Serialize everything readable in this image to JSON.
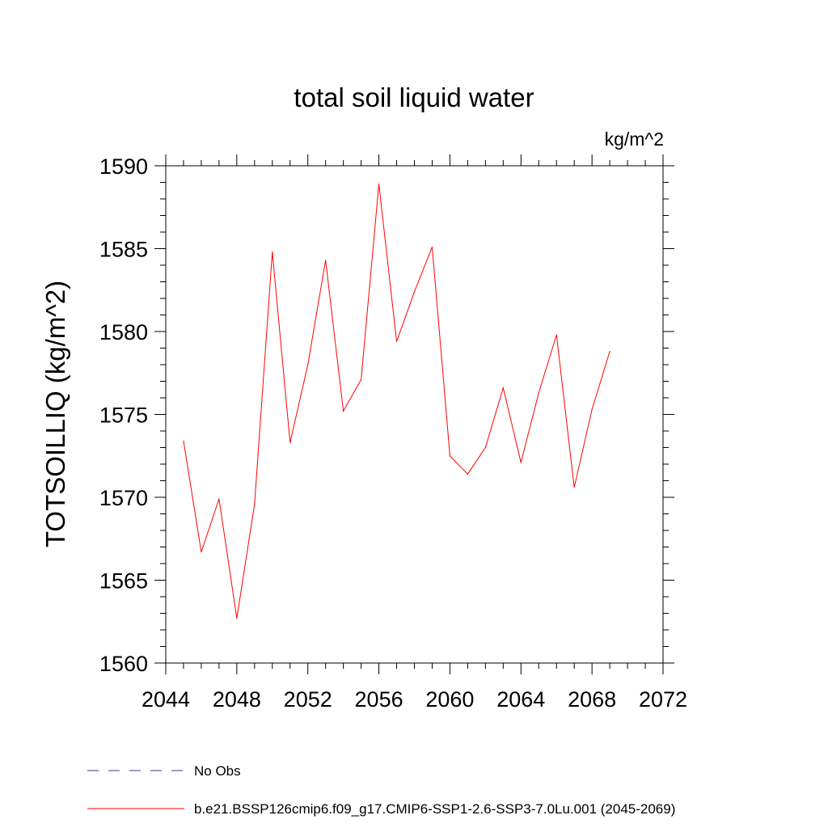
{
  "chart_data": {
    "type": "line",
    "title": "total soil liquid water",
    "units": "kg/m^2",
    "xlabel": "",
    "ylabel": "TOTSOILLIQ  (kg/m^2)",
    "xlim": [
      2044,
      2072
    ],
    "ylim": [
      1560,
      1590
    ],
    "x_ticks": [
      2044,
      2048,
      2052,
      2056,
      2060,
      2064,
      2068,
      2072
    ],
    "y_ticks": [
      1560,
      1565,
      1570,
      1575,
      1580,
      1585,
      1590
    ],
    "x_tick_labels": [
      "2044",
      "2048",
      "2052",
      "2056",
      "2060",
      "2064",
      "2068",
      "2072"
    ],
    "y_tick_labels": [
      "1560",
      "1565",
      "1570",
      "1575",
      "1580",
      "1585",
      "1590"
    ],
    "grid": false,
    "legend_position": "bottom",
    "series": [
      {
        "name": "No Obs",
        "color": "#3a3aa0",
        "line_style": "dashed",
        "x": [],
        "values": []
      },
      {
        "name": "b.e21.BSSP126cmip6.f09_g17.CMIP6-SSP1-2.6-SSP3-7.0Lu.001 (2045-2069)",
        "color": "#ff0000",
        "line_style": "solid",
        "x": [
          2045,
          2046,
          2047,
          2048,
          2049,
          2050,
          2051,
          2052,
          2053,
          2054,
          2055,
          2056,
          2057,
          2058,
          2059,
          2060,
          2061,
          2062,
          2063,
          2064,
          2065,
          2066,
          2067,
          2068,
          2069
        ],
        "values": [
          1573.4,
          1566.7,
          1569.9,
          1562.7,
          1569.6,
          1584.8,
          1573.3,
          1578.0,
          1584.3,
          1575.2,
          1577.1,
          1588.9,
          1579.4,
          1582.4,
          1585.1,
          1572.5,
          1571.4,
          1573.0,
          1576.6,
          1572.1,
          1576.3,
          1579.8,
          1570.6,
          1575.3,
          1578.8
        ]
      }
    ]
  }
}
